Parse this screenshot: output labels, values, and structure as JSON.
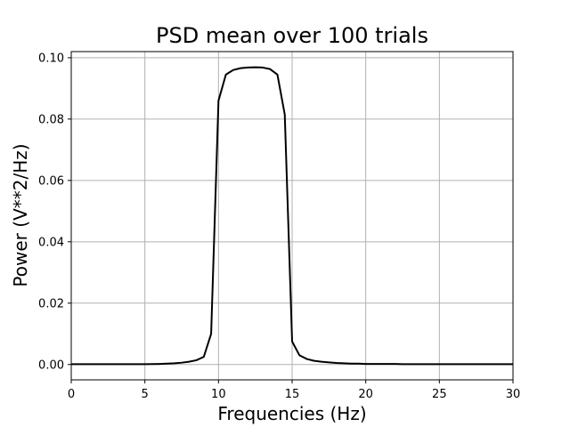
{
  "chart_data": {
    "type": "line",
    "title": "PSD mean over 100 trials",
    "xlabel": "Frequencies (Hz)",
    "ylabel": "Power (V**2/Hz)",
    "xlim": [
      0,
      30
    ],
    "ylim": [
      -0.005,
      0.102
    ],
    "xticks": [
      0,
      5,
      10,
      15,
      20,
      25,
      30
    ],
    "xtick_labels": [
      "0",
      "5",
      "10",
      "15",
      "20",
      "25",
      "30"
    ],
    "yticks": [
      0.0,
      0.02,
      0.04,
      0.06,
      0.08,
      0.1
    ],
    "ytick_labels": [
      "0.00",
      "0.02",
      "0.04",
      "0.06",
      "0.08",
      "0.10"
    ],
    "grid": true,
    "legend": false,
    "series": [
      {
        "color": "#000000",
        "x": [
          0,
          0.5,
          1,
          1.5,
          2,
          2.5,
          3,
          3.5,
          4,
          4.5,
          5,
          5.5,
          6,
          6.5,
          7,
          7.5,
          8,
          8.5,
          9,
          9.5,
          10,
          10.5,
          11,
          11.5,
          12,
          12.5,
          13,
          13.5,
          14,
          14.5,
          15,
          15.5,
          16,
          16.5,
          17,
          17.5,
          18,
          18.5,
          19,
          19.5,
          20,
          20.5,
          21,
          21.5,
          22,
          22.5,
          23,
          23.5,
          24,
          24.5,
          25,
          25.5,
          26,
          26.5,
          27,
          27.5,
          28,
          28.5,
          29,
          29.5,
          30
        ],
        "values": [
          0.0001,
          0.0001,
          0.0001,
          0.0001,
          0.0001,
          0.0001,
          0.0001,
          0.0001,
          0.0001,
          0.0001,
          0.0001,
          0.00015,
          0.0002,
          0.0003,
          0.0004,
          0.0006,
          0.0009,
          0.0014,
          0.0025,
          0.01,
          0.086,
          0.0945,
          0.096,
          0.0966,
          0.0968,
          0.0969,
          0.0968,
          0.0963,
          0.0945,
          0.0815,
          0.0075,
          0.003,
          0.0018,
          0.0012,
          0.0009,
          0.0007,
          0.0005,
          0.0004,
          0.0003,
          0.0003,
          0.0002,
          0.0002,
          0.0002,
          0.0002,
          0.0002,
          0.0001,
          0.0001,
          0.0001,
          0.0001,
          0.0001,
          0.0001,
          0.0001,
          0.0001,
          0.0001,
          0.0001,
          0.0001,
          0.0001,
          0.0001,
          0.0001,
          0.0001,
          0.0001
        ]
      }
    ]
  }
}
